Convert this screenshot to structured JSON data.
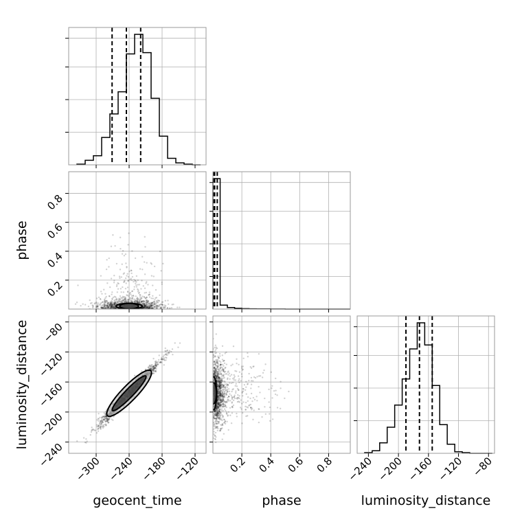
{
  "chart_data": {
    "type": "corner",
    "parameters": [
      "geocent_time",
      "phase",
      "luminosity_distance"
    ],
    "x_axis_labels": [
      "geocent_time",
      "phase",
      "luminosity_distance"
    ],
    "y_axis_labels": [
      "phase",
      "luminosity_distance"
    ],
    "grid": true,
    "ranges": {
      "geocent_time": [
        -350,
        -100
      ],
      "phase": [
        0.0,
        0.95
      ],
      "luminosity_distance": [
        -255,
        -72
      ]
    },
    "ticks": {
      "geocent_time": {
        "values": [
          -300,
          -240,
          -180,
          -120
        ],
        "labels": [
          "−300",
          "−240",
          "−180",
          "−120"
        ]
      },
      "phase_x": {
        "values": [
          0.2,
          0.4,
          0.6,
          0.8
        ],
        "labels": [
          "0.2",
          "0.4",
          "0.6",
          "0.8"
        ]
      },
      "phase_y": {
        "values": [
          0.2,
          0.4,
          0.6,
          0.8
        ],
        "labels": [
          "0.2",
          "0.4",
          "0.6",
          "0.8"
        ]
      },
      "luminosity_distance_x": {
        "values": [
          -240,
          -200,
          -160,
          -120,
          -80
        ],
        "labels": [
          "−240",
          "−200",
          "−160",
          "−120",
          "−80"
        ]
      },
      "luminosity_distance_y": {
        "values": [
          -240,
          -200,
          -160,
          -120,
          -80
        ],
        "labels": [
          "−240",
          "−200",
          "−160",
          "−120",
          "−80"
        ]
      }
    },
    "histograms": [
      {
        "parameter": "geocent_time",
        "bin_edges": [
          -335,
          -320,
          -305,
          -290,
          -275,
          -260,
          -245,
          -230,
          -215,
          -200,
          -185,
          -170,
          -155,
          -140,
          -125,
          -110
        ],
        "counts": [
          0.005,
          0.035,
          0.07,
          0.21,
          0.39,
          0.56,
          0.85,
          1.0,
          0.86,
          0.51,
          0.22,
          0.05,
          0.015,
          0.005,
          0.0
        ],
        "quantile_lines": [
          -271,
          -245,
          -219
        ]
      },
      {
        "parameter": "phase",
        "bin_edges": [
          0.0,
          0.05,
          0.1,
          0.15,
          0.2,
          0.25,
          0.3,
          0.35,
          0.4,
          0.45,
          0.5,
          0.55,
          0.6,
          0.65,
          0.7,
          0.75,
          0.8,
          0.85,
          0.9,
          0.95
        ],
        "counts": [
          1.0,
          0.03,
          0.012,
          0.006,
          0.003,
          0.002,
          0.001,
          0.001,
          0.0005,
          0.0005,
          0.0,
          0.0,
          0.0,
          0.0,
          0.0,
          0.0,
          0.0,
          0.0,
          0.0
        ],
        "quantile_lines": [
          0.004,
          0.012,
          0.03
        ]
      },
      {
        "parameter": "luminosity_distance",
        "bin_edges": [
          -245,
          -235,
          -225,
          -215,
          -205,
          -195,
          -185,
          -175,
          -165,
          -155,
          -145,
          -135,
          -125,
          -115,
          -105,
          -95,
          -85,
          -75
        ],
        "counts": [
          0.005,
          0.02,
          0.08,
          0.2,
          0.37,
          0.57,
          0.8,
          1.0,
          0.83,
          0.52,
          0.22,
          0.07,
          0.012,
          0.005,
          0.0,
          0.0,
          0.0
        ],
        "quantile_lines": [
          -190,
          -172,
          -155
        ]
      }
    ],
    "pairs": [
      {
        "x": "geocent_time",
        "y": "phase",
        "mean": [
          -240,
          0.02
        ],
        "std": [
          28,
          0.05
        ],
        "contour_levels": [
          {
            "center": [
              -240,
              0.02
            ],
            "rx": 24,
            "ry": 0.012
          },
          {
            "center": [
              -240,
              0.02
            ],
            "rx": 17,
            "ry": 0.007
          }
        ]
      },
      {
        "x": "geocent_time",
        "y": "luminosity_distance",
        "correlation": 0.98,
        "mean": [
          -240,
          -175
        ],
        "std": [
          28,
          22
        ],
        "contour_levels": [
          {
            "center": [
              -240,
              -175
            ],
            "rx": 62,
            "ry": 9,
            "angle_deg": 38
          },
          {
            "center": [
              -240,
              -175
            ],
            "rx": 48,
            "ry": 5,
            "angle_deg": 38
          }
        ]
      },
      {
        "x": "phase",
        "y": "luminosity_distance",
        "mean": [
          0.02,
          -175
        ],
        "std": [
          0.05,
          22
        ],
        "contour_levels": [
          {
            "center": [
              0.005,
              -175
            ],
            "rx": 0.02,
            "ry": 22
          },
          {
            "center": [
              0.005,
              -175
            ],
            "rx": 0.012,
            "ry": 14
          }
        ]
      }
    ]
  }
}
